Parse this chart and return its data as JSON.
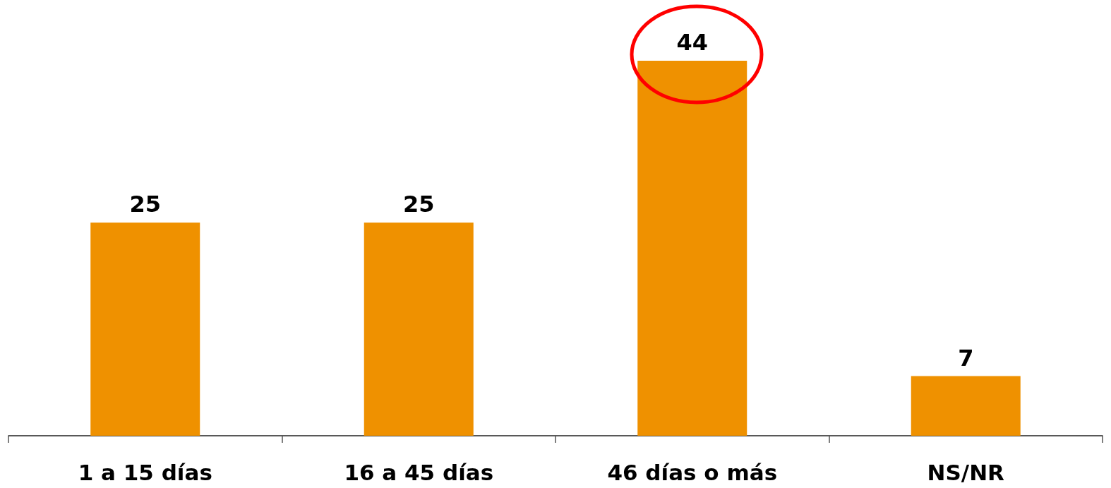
{
  "chart_data": {
    "type": "bar",
    "categories": [
      "1 a 15 días",
      "16 a 45 días",
      "46 días o más",
      "NS/NR"
    ],
    "values": [
      25,
      25,
      44,
      7
    ],
    "color": "#ef9100",
    "data_labels": true,
    "grid": false
  }
}
